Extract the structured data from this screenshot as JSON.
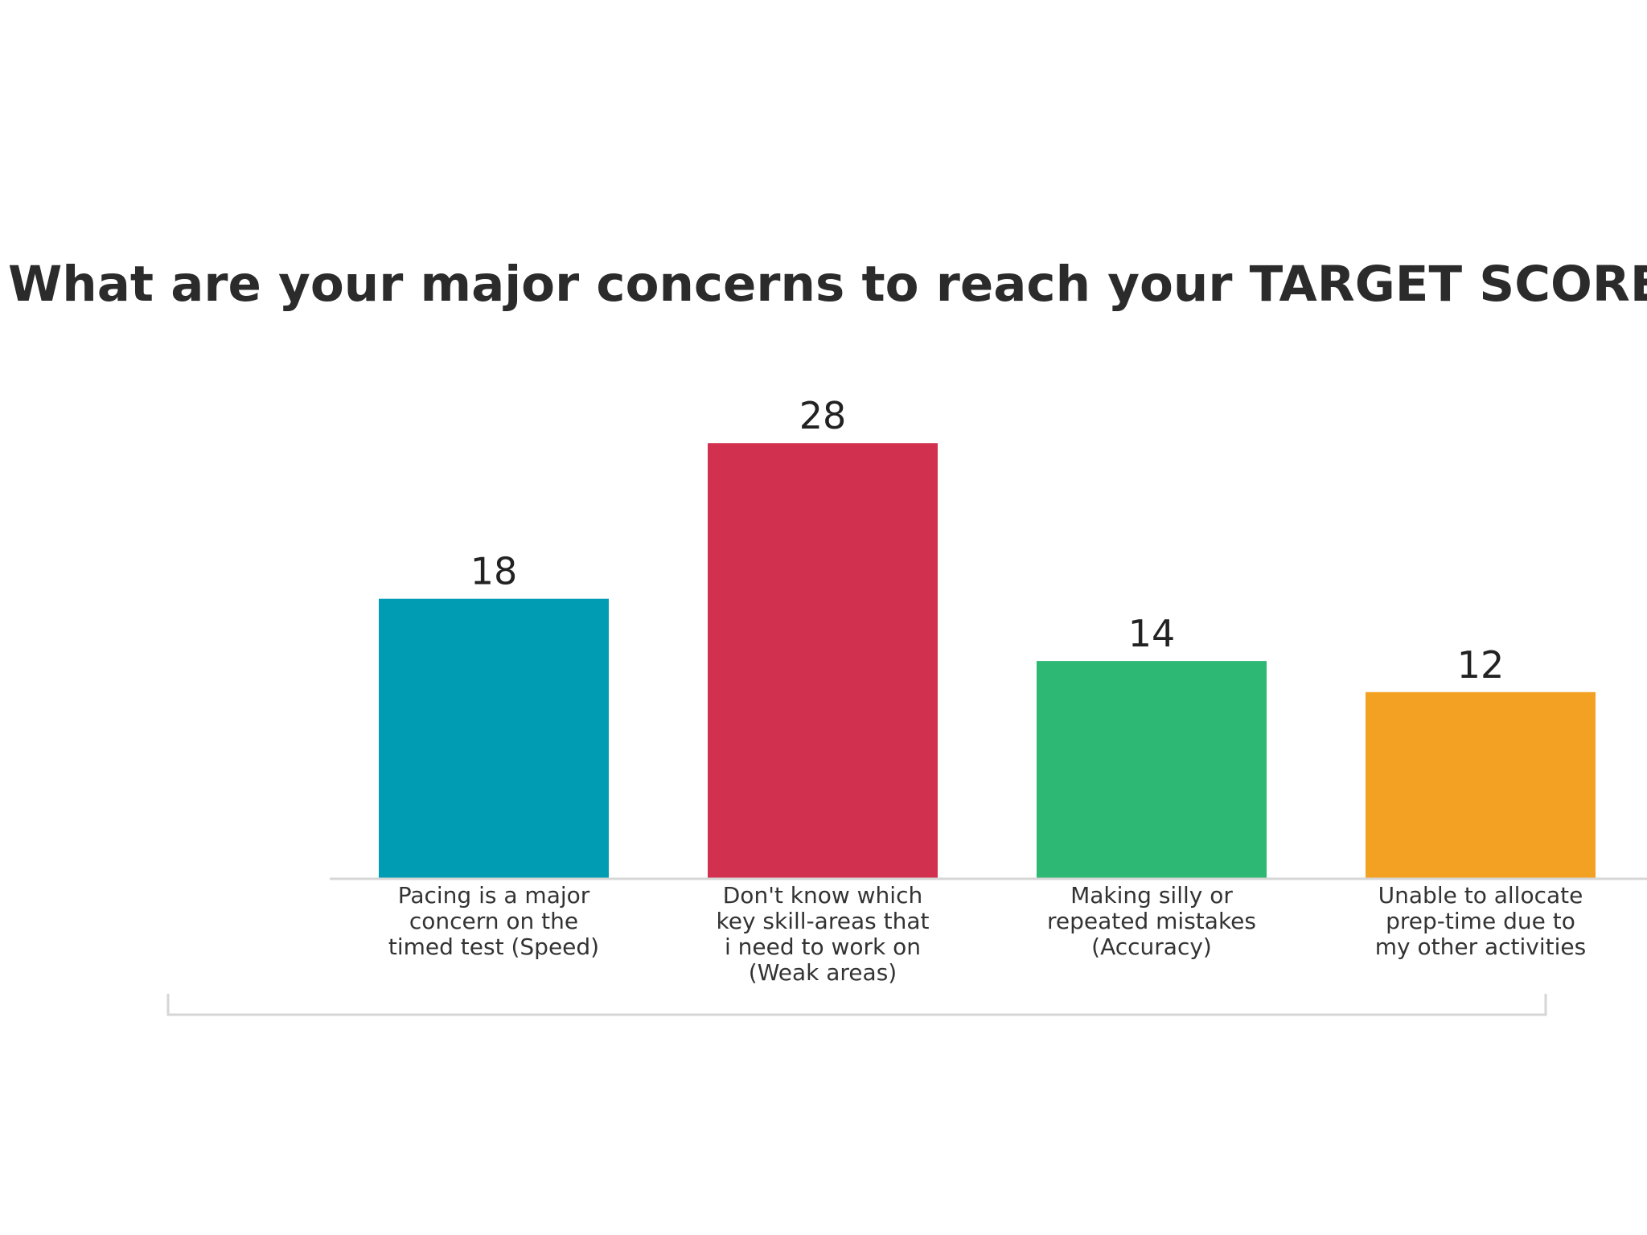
{
  "chart_data": {
    "type": "bar",
    "title": "What are your major concerns to reach your TARGET SCORE?",
    "categories": [
      "Pacing is a major concern on the timed test (Speed)",
      "Don't know which key skill-areas that i need to work on (Weak areas)",
      "Making silly or repeated mistakes (Accuracy)",
      "Unable to allocate prep-time due to my other activities"
    ],
    "category_lines": [
      [
        "Pacing is a major",
        "concern on the",
        "timed test (Speed)"
      ],
      [
        "Don't know which",
        "key skill-areas that",
        "i need to work on",
        "(Weak areas)"
      ],
      [
        "Making silly or",
        "repeated mistakes",
        "(Accuracy)"
      ],
      [
        "Unable to allocate",
        "prep-time due to",
        "my other activities"
      ]
    ],
    "values": [
      18,
      28,
      14,
      12
    ],
    "colors": [
      "#009CB4",
      "#D1314E",
      "#2DB873",
      "#F2A122"
    ],
    "data_labels": [
      "18",
      "28",
      "14",
      "12"
    ],
    "xlabel": "",
    "ylabel": "",
    "ylim": [
      0,
      28
    ],
    "grid": false,
    "legend": "none"
  }
}
